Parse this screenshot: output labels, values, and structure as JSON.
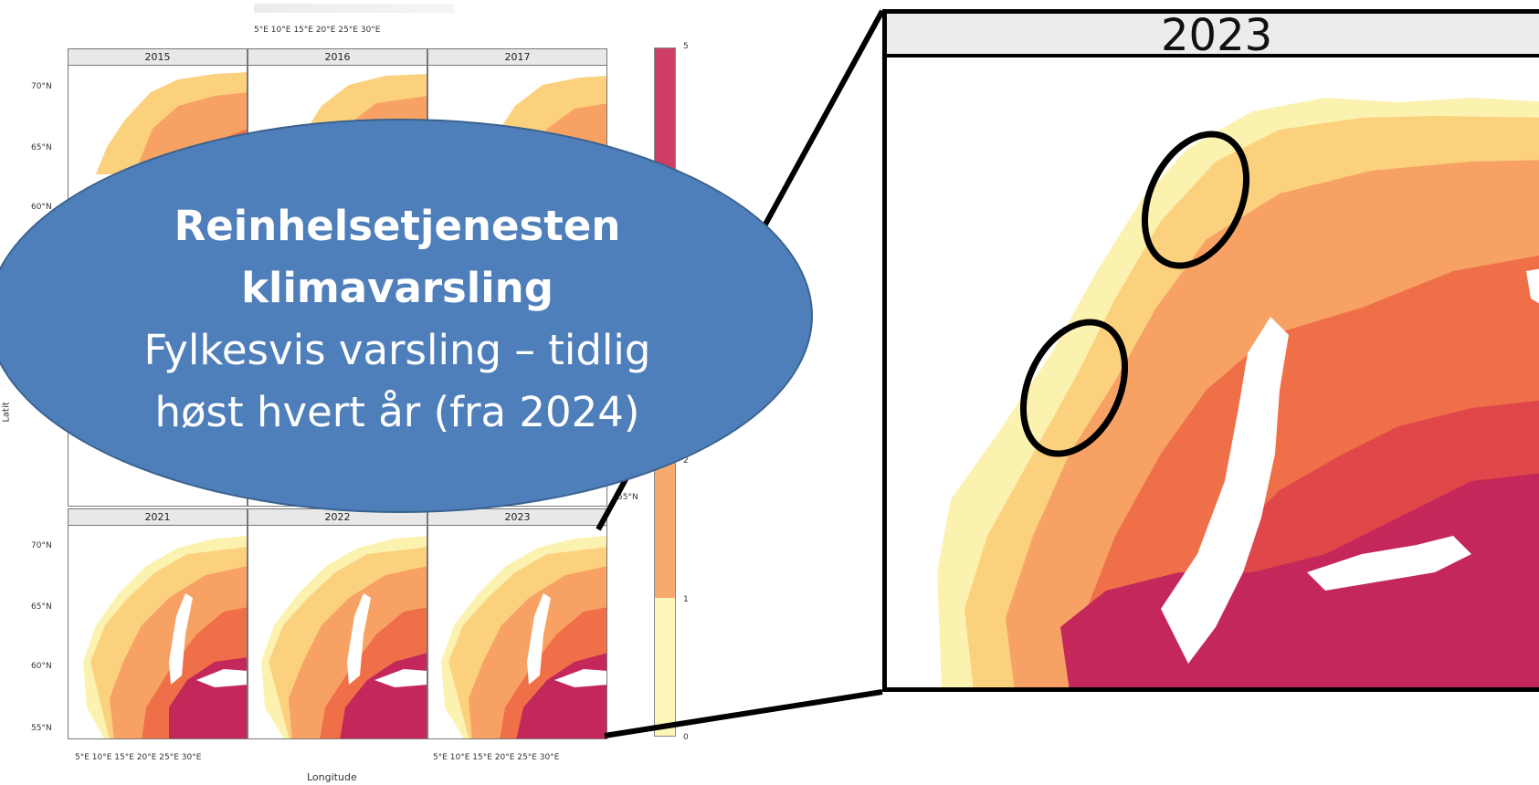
{
  "small_multiples": {
    "top_axis_ticks": [
      "5°E",
      "10°E",
      "15°E",
      "20°E",
      "25°E",
      "30°E"
    ],
    "bottom_axis_ticks_left": "5°E  10°E  15°E  20°E  25°E  30°E",
    "bottom_axis_ticks_right": "5°E  10°E  15°E  20°E  25°E  30°E",
    "y_ticks_top": [
      "70°N",
      "65°N",
      "60°N"
    ],
    "y_ticks_bottom": [
      "70°N",
      "65°N",
      "60°N",
      "55°N"
    ],
    "right_y_tick": "55°N",
    "xlabel": "Longitude",
    "ylabel_fragment": "Latit",
    "panels_top": [
      "2015",
      "2016",
      "2017"
    ],
    "panels_bottom": [
      "2021",
      "2022",
      "2023"
    ]
  },
  "colorbar": {
    "ticks": [
      "5",
      "2",
      "1",
      "0"
    ],
    "colors": [
      "#c8325f",
      "#e5603f",
      "#f7a76a",
      "#fbf5b5"
    ]
  },
  "zoom": {
    "year": "2023"
  },
  "callout": {
    "title_line1": "Reinhelsetjenesten",
    "title_line2": "klimavarsling",
    "body_line1": "Fylkesvis varsling – tidlig",
    "body_line2": "høst hvert år (fra 2024)"
  },
  "palette": {
    "level0": "#ffffff",
    "level1": "#fcf2b0",
    "level2": "#fbd17e",
    "level3": "#f7a264",
    "level4": "#ef7048",
    "level5": "#e0474a",
    "level6": "#c4285a"
  }
}
